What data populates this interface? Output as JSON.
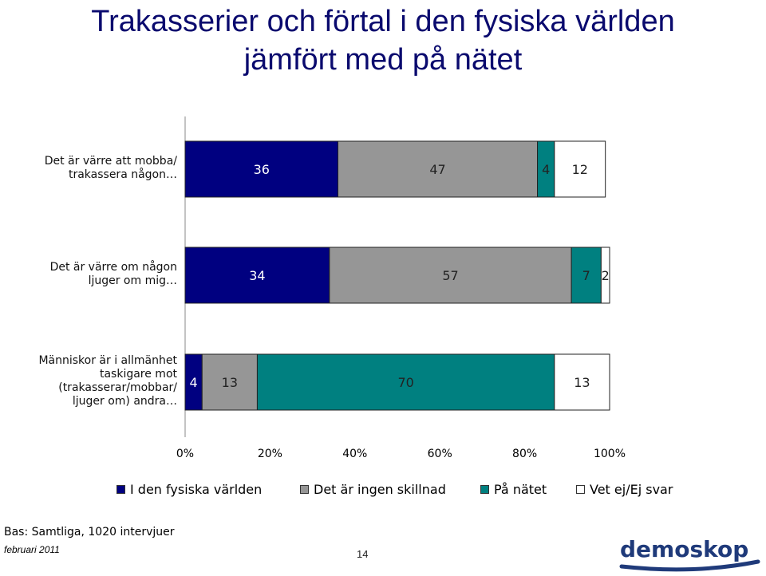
{
  "title_line1": "Trakasserier och förtal i den fysiska världen",
  "title_line2": "jämfört med på nätet",
  "chart_data": {
    "type": "bar",
    "orientation": "horizontal-stacked-percent",
    "categories": [
      "Det är värre att mobba/\ntrakassera någon…",
      "Det är värre om någon\nljuger om mig…",
      "Människor är i allmänhet\ntaskigare mot\n(trakasserar/mobbar/\nljuger om) andra…"
    ],
    "series": [
      {
        "name": "I den fysiska världen",
        "color": "#000080",
        "values": [
          36,
          34,
          4
        ]
      },
      {
        "name": "Det är ingen skillnad",
        "color": "#969696",
        "values": [
          47,
          57,
          13
        ]
      },
      {
        "name": "På nätet",
        "color": "#008080",
        "values": [
          4,
          7,
          70
        ]
      },
      {
        "name": "Vet ej/Ej svar",
        "color": "#ffffff",
        "values": [
          12,
          2,
          13
        ]
      }
    ],
    "xticks": [
      "0%",
      "20%",
      "40%",
      "60%",
      "80%",
      "100%"
    ],
    "xlim": [
      0,
      100
    ],
    "legend_position": "bottom",
    "grid": false
  },
  "footer": {
    "base": "Bas: Samtliga, 1020 intervjuer",
    "date": "februari 2011",
    "page": "14",
    "logo_text": "demoskop"
  }
}
